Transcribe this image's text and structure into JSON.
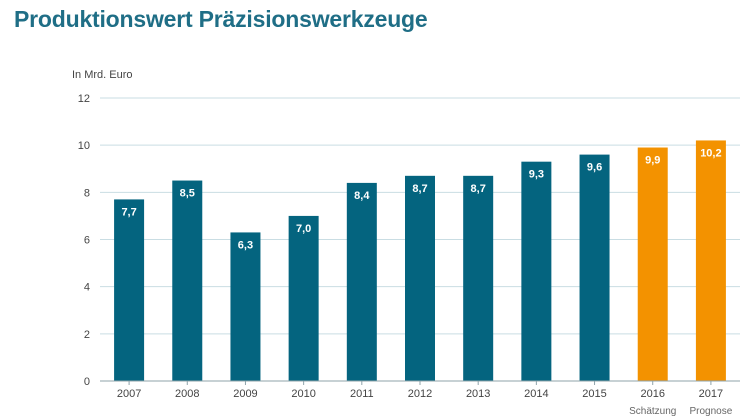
{
  "chart_data": {
    "type": "bar",
    "title": "Produktionswert Präzisionswerkzeuge",
    "ylabel": "In Mrd. Euro",
    "xlabel": "",
    "categories": [
      "2007",
      "2008",
      "2009",
      "2010",
      "2011",
      "2012",
      "2013",
      "2014",
      "2015",
      "2016",
      "2017"
    ],
    "sublabels": [
      "",
      "",
      "",
      "",
      "",
      "",
      "",
      "",
      "",
      "Schätzung",
      "Prognose"
    ],
    "values": [
      7.7,
      8.5,
      6.3,
      7.0,
      8.4,
      8.7,
      8.7,
      9.3,
      9.6,
      9.9,
      10.2
    ],
    "value_labels": [
      "7,7",
      "8,5",
      "6,3",
      "7,0",
      "8,4",
      "8,7",
      "8,7",
      "9,3",
      "9,6",
      "9,9",
      "10,2"
    ],
    "ylim": [
      0,
      12
    ],
    "yticks": [
      0,
      2,
      4,
      6,
      8,
      10,
      12
    ],
    "grid": true,
    "legend": "none",
    "colors": {
      "actual": "#04647f",
      "forecast": "#f39200",
      "title": "#1f6e86",
      "grid": "#c9dde3",
      "axis": "#8fa3aa"
    },
    "bar_kind": [
      "actual",
      "actual",
      "actual",
      "actual",
      "actual",
      "actual",
      "actual",
      "actual",
      "actual",
      "forecast",
      "forecast"
    ]
  }
}
